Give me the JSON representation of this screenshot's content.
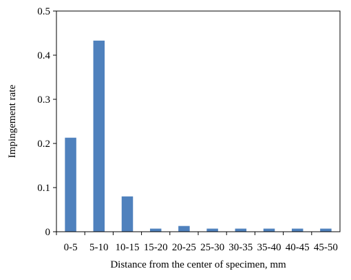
{
  "chart_data": {
    "type": "bar",
    "title": "",
    "xlabel": "Distance from the center of specimen, mm",
    "ylabel": "Impingement rate",
    "categories": [
      "0-5",
      "5-10",
      "10-15",
      "15-20",
      "20-25",
      "25-30",
      "30-35",
      "35-40",
      "40-45",
      "45-50"
    ],
    "values": [
      0.213,
      0.433,
      0.08,
      0.007,
      0.013,
      0.007,
      0.007,
      0.007,
      0.007,
      0.007
    ],
    "ylim": [
      0,
      0.5
    ],
    "yticks": [
      "0",
      "0.1",
      "0.2",
      "0.3",
      "0.4",
      "0.5"
    ],
    "grid": false,
    "legend": "none",
    "bar_color": "#4F81BD"
  }
}
